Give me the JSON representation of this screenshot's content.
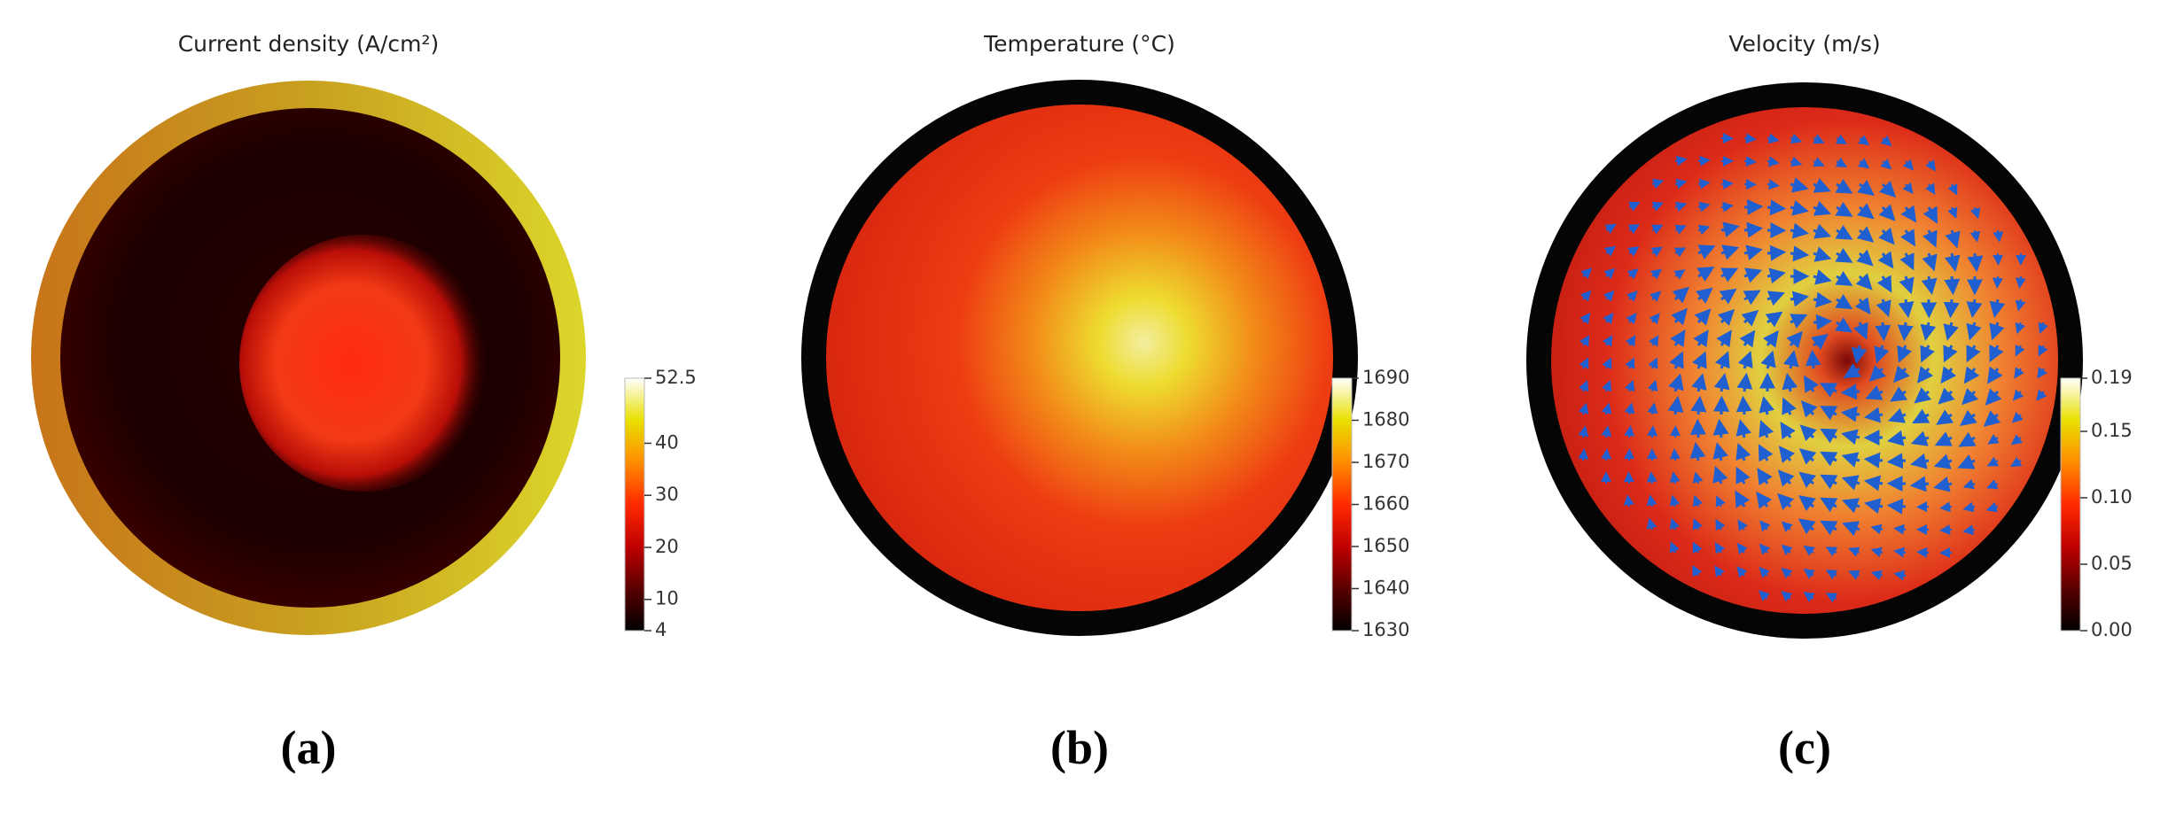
{
  "chart_data": [
    {
      "type": "field",
      "title": "Current density (A/cm²)",
      "caption": "(a)",
      "colormap": [
        "#000000",
        "#5a0000",
        "#c00000",
        "#ff2a00",
        "#ff8c00",
        "#e8e000",
        "#ffffff"
      ],
      "clim": [
        4,
        52.5
      ],
      "cticks": [
        4,
        10,
        20,
        30,
        40,
        52.5
      ]
    },
    {
      "type": "field",
      "title": "Temperature (°C)",
      "caption": "(b)",
      "colormap": [
        "#000000",
        "#5a0000",
        "#c00000",
        "#ff2a00",
        "#ff8c00",
        "#e8e000",
        "#ffffff"
      ],
      "clim": [
        1630,
        1690
      ],
      "cticks": [
        1630,
        1640,
        1650,
        1660,
        1670,
        1680,
        1690
      ]
    },
    {
      "type": "field",
      "title": "Velocity (m/s)",
      "caption": "(c)",
      "colormap": [
        "#000000",
        "#5a0000",
        "#c00000",
        "#ff2a00",
        "#ff8c00",
        "#e8e000",
        "#ffffff"
      ],
      "clim": [
        0,
        0.19
      ],
      "cticks": [
        {
          "value": 0,
          "label": "0.00"
        },
        {
          "value": 0.05,
          "label": "0.05"
        },
        {
          "value": 0.1,
          "label": "0.10"
        },
        {
          "value": 0.15,
          "label": "0.15"
        },
        0.19
      ]
    }
  ]
}
